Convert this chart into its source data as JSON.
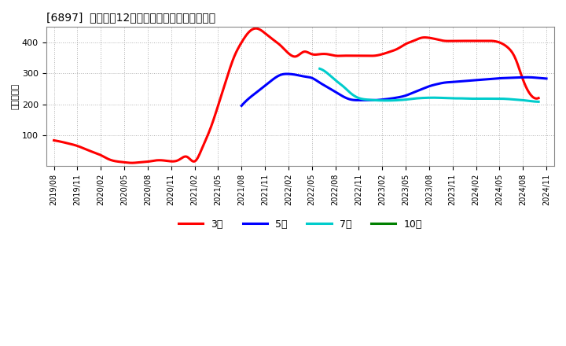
{
  "title": "[6897]  経常利益12か月移動合計の平均値の推移",
  "ylabel": "（百万円）",
  "background_color": "#ffffff",
  "plot_bg_color": "#ffffff",
  "grid_color": "#aaaaaa",
  "ylim": [
    0,
    450
  ],
  "yticks": [
    100,
    200,
    300,
    400
  ],
  "series": {
    "3年": {
      "color": "#ff0000",
      "values_x": [
        0,
        1,
        2,
        3,
        4,
        5,
        6,
        7,
        8,
        9,
        10,
        11,
        12,
        13,
        14,
        15,
        16,
        17,
        18,
        19,
        20,
        21,
        22,
        23,
        24,
        25,
        26,
        27,
        28,
        29,
        30,
        31,
        32,
        33,
        34,
        35,
        36,
        37,
        38,
        39,
        40,
        41,
        42,
        43,
        44,
        45,
        46,
        47,
        48,
        49,
        50,
        51,
        52,
        53,
        54,
        55,
        56,
        57,
        58,
        59,
        60,
        61,
        62
      ],
      "values_y": [
        83,
        78,
        72,
        65,
        55,
        45,
        35,
        22,
        15,
        12,
        10,
        12,
        14,
        18,
        18,
        15,
        20,
        30,
        15,
        60,
        120,
        195,
        275,
        350,
        400,
        435,
        445,
        430,
        410,
        390,
        365,
        355,
        370,
        362,
        362,
        362,
        357,
        357,
        357,
        357,
        357,
        357,
        362,
        370,
        380,
        395,
        405,
        415,
        415,
        410,
        405,
        405,
        405,
        405,
        405,
        405,
        405,
        400,
        385,
        350,
        280,
        230,
        220
      ]
    },
    "5年": {
      "color": "#0000ff",
      "values_x": [
        24,
        25,
        26,
        27,
        28,
        29,
        30,
        31,
        32,
        33,
        34,
        35,
        36,
        37,
        38,
        39,
        40,
        41,
        42,
        43,
        44,
        45,
        46,
        47,
        48,
        49,
        50,
        51,
        52,
        53,
        54,
        55,
        56,
        57,
        58,
        59,
        60,
        61,
        62,
        63
      ],
      "values_y": [
        195,
        220,
        240,
        260,
        280,
        295,
        298,
        295,
        290,
        285,
        270,
        255,
        240,
        225,
        215,
        213,
        213,
        213,
        215,
        218,
        222,
        228,
        238,
        248,
        258,
        265,
        270,
        272,
        274,
        276,
        278,
        280,
        282,
        284,
        285,
        286,
        287,
        287,
        285,
        283
      ]
    },
    "7年": {
      "color": "#00cccc",
      "values_x": [
        34,
        35,
        36,
        37,
        38,
        39,
        40,
        41,
        42,
        43,
        44,
        45,
        46,
        47,
        48,
        49,
        50,
        51,
        52,
        53,
        54,
        55,
        56,
        57,
        58,
        59,
        60,
        61,
        62
      ],
      "values_y": [
        315,
        300,
        278,
        258,
        235,
        220,
        215,
        213,
        212,
        212,
        213,
        215,
        218,
        220,
        221,
        221,
        220,
        219,
        219,
        218,
        218,
        218,
        218,
        218,
        217,
        215,
        213,
        210,
        208
      ]
    },
    "10年": {
      "color": "#008000",
      "values_x": [],
      "values_y": []
    }
  },
  "xtick_positions": [
    0,
    3,
    6,
    9,
    12,
    15,
    18,
    21,
    24,
    27,
    30,
    33,
    36,
    39,
    42,
    45,
    48,
    51,
    54,
    57,
    60,
    63
  ],
  "xtick_labels": [
    "2019/08",
    "2019/11",
    "2020/02",
    "2020/05",
    "2020/08",
    "2020/11",
    "2021/02",
    "2021/05",
    "2021/08",
    "2021/11",
    "2022/02",
    "2022/05",
    "2022/08",
    "2022/11",
    "2023/02",
    "2023/05",
    "2023/08",
    "2023/11",
    "2024/02",
    "2024/05",
    "2024/08",
    "2024/11"
  ],
  "legend_labels": [
    "3年",
    "5年",
    "7年",
    "10年"
  ],
  "legend_colors": [
    "#ff0000",
    "#0000ff",
    "#00cccc",
    "#008000"
  ],
  "xlim": [
    -1,
    64
  ]
}
